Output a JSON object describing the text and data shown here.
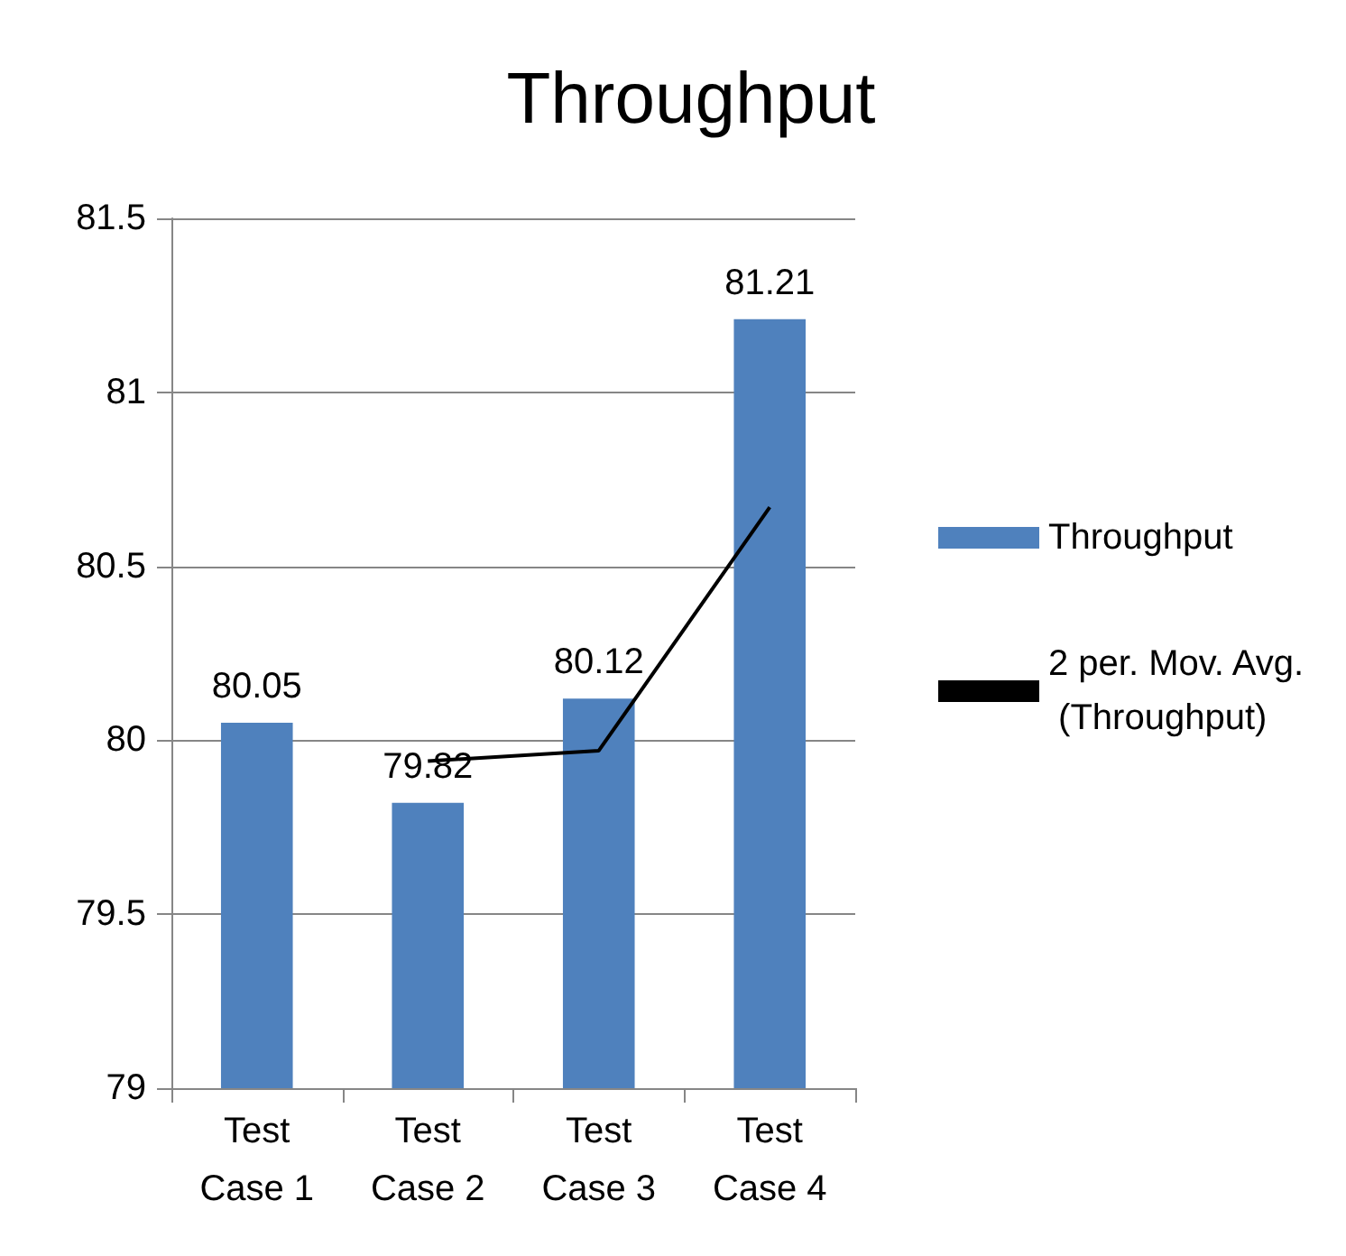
{
  "chart_data": {
    "type": "bar",
    "title": "Throughput",
    "categories": [
      "Test Case 1",
      "Test Case 2",
      "Test Case 3",
      "Test Case 4"
    ],
    "series": [
      {
        "name": "Throughput",
        "color": "#4f81bd",
        "values": [
          80.05,
          79.82,
          80.12,
          81.21
        ],
        "value_labels": [
          "80.05",
          "79.82",
          "80.12",
          "81.21"
        ]
      },
      {
        "name": "2 per. Mov. Avg. (Throughput)",
        "type": "line",
        "color": "#000000",
        "values": [
          null,
          79.94,
          79.97,
          80.67
        ],
        "marker": "none"
      }
    ],
    "ylim": [
      79,
      81.5
    ],
    "yticks": [
      79,
      79.5,
      80,
      80.5,
      81,
      81.5
    ],
    "grid": "y",
    "legend": "right"
  }
}
